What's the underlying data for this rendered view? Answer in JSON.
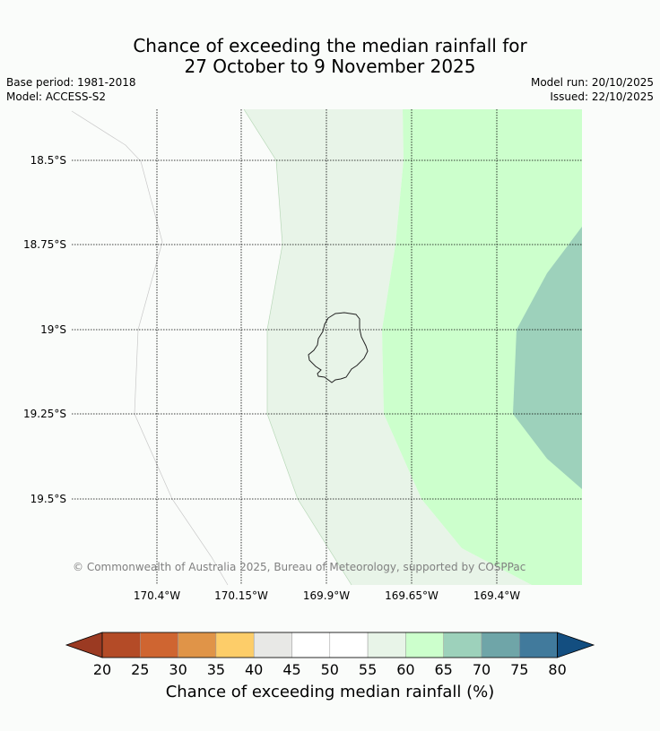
{
  "title": {
    "line1": "Chance of exceeding the median rainfall for",
    "line2": "27 October to 9 November 2025"
  },
  "meta": {
    "base_period": "Base period: 1981-2018",
    "model": "Model: ACCESS-S2",
    "model_run": "Model run: 20/10/2025",
    "issued": "Issued: 22/10/2025"
  },
  "map": {
    "lat_labels": [
      "18.5°S",
      "18.75°S",
      "19°S",
      "19.25°S",
      "19.5°S"
    ],
    "lon_labels": [
      "170.4°W",
      "170.15°W",
      "169.9°W",
      "169.65°W",
      "169.4°W"
    ],
    "copyright": "© Commonwealth of Australia 2025, Bureau of Meteorology, supported by COSPPac"
  },
  "colorbar": {
    "ticks": [
      "20",
      "25",
      "30",
      "35",
      "40",
      "45",
      "50",
      "55",
      "60",
      "65",
      "70",
      "75",
      "80"
    ],
    "colors": [
      "#9b3a22",
      "#b44b27",
      "#cf6531",
      "#e09448",
      "#fdcd69",
      "#e8e8e6",
      "#ffffff",
      "#ffffff",
      "#e8f4e8",
      "#ccffcc",
      "#9dd1bb",
      "#6fa5a8",
      "#417a9c",
      "#134e80"
    ],
    "title": "Chance of exceeding median rainfall (%)"
  }
}
